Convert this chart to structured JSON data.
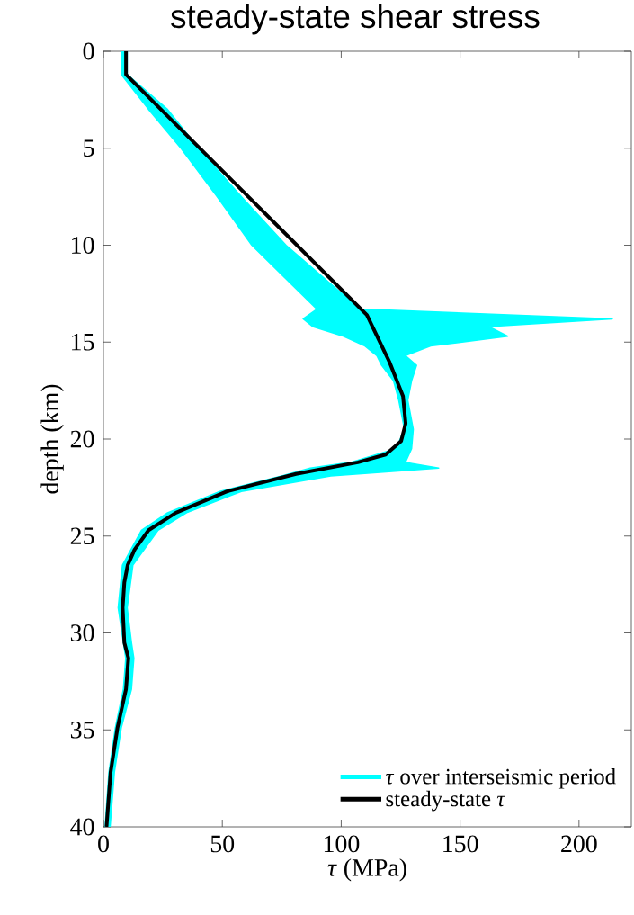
{
  "chart_data": {
    "type": "line",
    "orientation": "horizontal",
    "title": "steady-state shear stress",
    "xlabel": "*τ* (MPa)",
    "ylabel": "depth (km)",
    "xlim": [
      0,
      222
    ],
    "ylim": [
      40,
      0
    ],
    "xticks": [
      0,
      50,
      100,
      150,
      200
    ],
    "yticks": [
      0,
      5,
      10,
      15,
      20,
      25,
      30,
      35,
      40
    ],
    "legend": "bottom right",
    "series": [
      {
        "name": "*τ* over interseismic period",
        "type": "area",
        "color": "#00ffff",
        "values": [
          null,
          null,
          null,
          null,
          null,
          null,
          null,
          null,
          null,
          null,
          null,
          null,
          null,
          null,
          null,
          null,
          null,
          null,
          null,
          null,
          null,
          null,
          null,
          null,
          null,
          null,
          null,
          null,
          null,
          null,
          null,
          null
        ],
        "x": [
          0,
          1.2,
          3,
          5,
          7.5,
          10,
          12,
          13.3,
          13.8,
          14.2,
          14.7,
          15.2,
          15.7,
          16.2,
          17,
          18,
          19.5,
          20.5,
          21.2,
          21.5,
          21.9,
          22.7,
          23.8,
          24.7,
          26.5,
          28.7,
          30.5,
          31.3,
          32.9,
          34.9,
          37.2,
          40
        ],
        "lower": [
          7.5,
          7.5,
          19,
          32.6,
          47.8,
          62.4,
          79,
          89.8,
          84,
          88,
          101,
          110,
          115,
          117,
          122,
          124.2,
          126.6,
          123,
          104,
          87,
          75,
          49,
          27,
          16,
          8,
          6.2,
          8.4,
          9.4,
          8.4,
          5,
          2.3,
          0.7
        ],
        "upper": [
          10,
          10,
          27,
          40,
          58,
          76.8,
          95.6,
          108,
          214,
          162,
          170,
          137.6,
          127,
          131.7,
          129.6,
          128,
          130.3,
          129.6,
          127,
          141,
          95.6,
          58,
          35,
          23,
          12.4,
          10,
          11.8,
          12.8,
          11.8,
          7.5,
          4.6,
          2.8
        ]
      },
      {
        "name": "steady-state *τ*",
        "color": "#000000",
        "x": [
          0,
          1.2,
          13.6,
          16.0,
          17.8,
          19.2,
          20.1,
          20.8,
          21.2,
          21.8,
          22.7,
          23.8,
          24.7,
          25.7,
          26.5,
          27.4,
          28.7,
          30.5,
          31.3,
          32.9,
          34.9,
          37.2,
          40
        ],
        "values": [
          9.5,
          9.5,
          110.8,
          120.2,
          126,
          127.1,
          125.2,
          118.7,
          107,
          81,
          52,
          30.5,
          19,
          13.1,
          10.2,
          8.8,
          8.1,
          8.8,
          10.5,
          9.5,
          5.9,
          3,
          1.3
        ]
      }
    ]
  }
}
